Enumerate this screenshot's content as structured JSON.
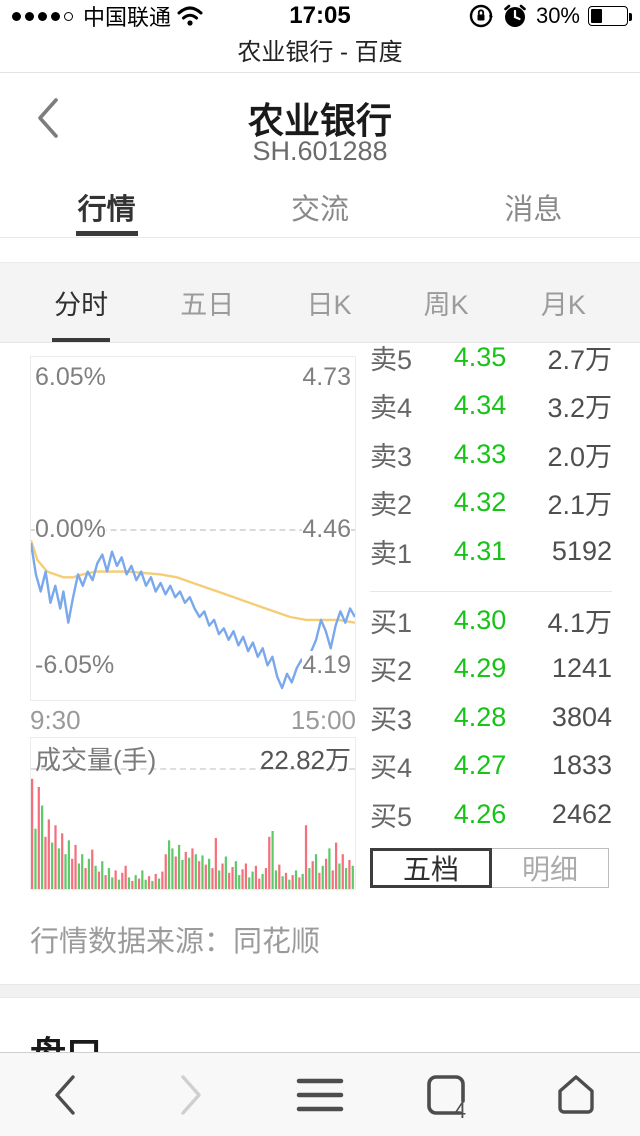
{
  "status_bar": {
    "carrier": "中国联通",
    "time": "17:05",
    "battery_pct_label": "30%",
    "battery_level": 0.3,
    "signal_dots_filled": 4,
    "signal_dots_total": 5
  },
  "browser": {
    "page_title": "农业银行 - 百度"
  },
  "stock_header": {
    "title": "农业银行",
    "code": "SH.601288"
  },
  "tabs": [
    {
      "label": "行情",
      "active": true
    },
    {
      "label": "交流",
      "active": false
    },
    {
      "label": "消息",
      "active": false
    }
  ],
  "subtabs": [
    {
      "label": "分时",
      "active": true
    },
    {
      "label": "五日",
      "active": false
    },
    {
      "label": "日K",
      "active": false
    },
    {
      "label": "周K",
      "active": false
    },
    {
      "label": "月K",
      "active": false
    }
  ],
  "chart_data": [
    {
      "type": "line",
      "title": "minute-price-chart",
      "x_axis": {
        "labels": [
          "9:30",
          "15:00"
        ]
      },
      "y_left_labels": [
        "6.05%",
        "0.00%",
        "-6.05%"
      ],
      "y_right_labels": [
        "4.73",
        "4.46",
        "4.19"
      ],
      "ylim_pct": [
        -6.05,
        6.05
      ],
      "zero_price": "4.46",
      "grid": "dashed-zero-line",
      "series": [
        {
          "name": "price",
          "color": "#7aa8ec",
          "points": [
            [
              0,
              -0.5
            ],
            [
              0.015,
              -1.6
            ],
            [
              0.03,
              -2.2
            ],
            [
              0.045,
              -1.5
            ],
            [
              0.06,
              -2.6
            ],
            [
              0.075,
              -2.0
            ],
            [
              0.09,
              -2.8
            ],
            [
              0.1,
              -2.2
            ],
            [
              0.115,
              -3.3
            ],
            [
              0.13,
              -2.4
            ],
            [
              0.145,
              -1.6
            ],
            [
              0.16,
              -2.0
            ],
            [
              0.175,
              -1.5
            ],
            [
              0.19,
              -1.8
            ],
            [
              0.205,
              -1.2
            ],
            [
              0.22,
              -0.9
            ],
            [
              0.235,
              -1.5
            ],
            [
              0.25,
              -0.8
            ],
            [
              0.265,
              -1.3
            ],
            [
              0.28,
              -1.0
            ],
            [
              0.295,
              -1.6
            ],
            [
              0.31,
              -1.3
            ],
            [
              0.325,
              -1.8
            ],
            [
              0.34,
              -1.5
            ],
            [
              0.355,
              -2.0
            ],
            [
              0.37,
              -1.7
            ],
            [
              0.385,
              -2.2
            ],
            [
              0.4,
              -1.9
            ],
            [
              0.415,
              -2.3
            ],
            [
              0.43,
              -2.0
            ],
            [
              0.445,
              -2.4
            ],
            [
              0.46,
              -2.2
            ],
            [
              0.475,
              -2.6
            ],
            [
              0.49,
              -2.4
            ],
            [
              0.505,
              -2.8
            ],
            [
              0.52,
              -3.1
            ],
            [
              0.535,
              -2.9
            ],
            [
              0.55,
              -3.4
            ],
            [
              0.565,
              -3.2
            ],
            [
              0.58,
              -3.7
            ],
            [
              0.595,
              -3.5
            ],
            [
              0.61,
              -3.9
            ],
            [
              0.625,
              -3.6
            ],
            [
              0.64,
              -4.1
            ],
            [
              0.655,
              -3.8
            ],
            [
              0.67,
              -4.3
            ],
            [
              0.685,
              -4.0
            ],
            [
              0.7,
              -4.5
            ],
            [
              0.715,
              -4.2
            ],
            [
              0.73,
              -4.8
            ],
            [
              0.745,
              -4.5
            ],
            [
              0.76,
              -5.2
            ],
            [
              0.775,
              -5.6
            ],
            [
              0.79,
              -5.1
            ],
            [
              0.805,
              -5.4
            ],
            [
              0.82,
              -4.9
            ],
            [
              0.835,
              -4.6
            ],
            [
              0.85,
              -4.9
            ],
            [
              0.865,
              -4.3
            ],
            [
              0.88,
              -3.9
            ],
            [
              0.895,
              -3.2
            ],
            [
              0.91,
              -3.6
            ],
            [
              0.925,
              -4.2
            ],
            [
              0.94,
              -3.4
            ],
            [
              0.955,
              -2.9
            ],
            [
              0.97,
              -3.3
            ],
            [
              0.985,
              -2.8
            ],
            [
              1,
              -3.1
            ]
          ]
        },
        {
          "name": "average",
          "color": "#f5cd76",
          "points": [
            [
              0,
              -0.4
            ],
            [
              0.02,
              -1.1
            ],
            [
              0.05,
              -1.5
            ],
            [
              0.1,
              -1.7
            ],
            [
              0.13,
              -1.7
            ],
            [
              0.16,
              -1.6
            ],
            [
              0.2,
              -1.5
            ],
            [
              0.3,
              -1.5
            ],
            [
              0.4,
              -1.6
            ],
            [
              0.45,
              -1.7
            ],
            [
              0.5,
              -1.9
            ],
            [
              0.55,
              -2.1
            ],
            [
              0.6,
              -2.3
            ],
            [
              0.65,
              -2.5
            ],
            [
              0.7,
              -2.7
            ],
            [
              0.75,
              -2.9
            ],
            [
              0.8,
              -3.1
            ],
            [
              0.85,
              -3.2
            ],
            [
              0.9,
              -3.2
            ],
            [
              0.95,
              -3.2
            ],
            [
              1,
              -3.3
            ]
          ]
        }
      ]
    },
    {
      "type": "bar",
      "title_label": "成交量(手)",
      "max_label": "22.82万",
      "colors": {
        "up": "#f5707c",
        "down": "#5fc96a"
      },
      "bars": [
        [
          95,
          "r"
        ],
        [
          52,
          "g"
        ],
        [
          88,
          "r"
        ],
        [
          72,
          "g"
        ],
        [
          45,
          "r"
        ],
        [
          60,
          "r"
        ],
        [
          40,
          "g"
        ],
        [
          55,
          "r"
        ],
        [
          35,
          "g"
        ],
        [
          48,
          "r"
        ],
        [
          30,
          "g"
        ],
        [
          42,
          "g"
        ],
        [
          26,
          "r"
        ],
        [
          38,
          "r"
        ],
        [
          22,
          "g"
        ],
        [
          30,
          "g"
        ],
        [
          18,
          "r"
        ],
        [
          26,
          "g"
        ],
        [
          34,
          "r"
        ],
        [
          20,
          "g"
        ],
        [
          15,
          "r"
        ],
        [
          24,
          "g"
        ],
        [
          12,
          "r"
        ],
        [
          18,
          "g"
        ],
        [
          10,
          "g"
        ],
        [
          16,
          "r"
        ],
        [
          8,
          "g"
        ],
        [
          14,
          "r"
        ],
        [
          20,
          "r"
        ],
        [
          10,
          "g"
        ],
        [
          7,
          "r"
        ],
        [
          12,
          "g"
        ],
        [
          9,
          "r"
        ],
        [
          16,
          "g"
        ],
        [
          8,
          "g"
        ],
        [
          11,
          "r"
        ],
        [
          7,
          "g"
        ],
        [
          13,
          "r"
        ],
        [
          9,
          "g"
        ],
        [
          15,
          "r"
        ],
        [
          30,
          "r"
        ],
        [
          42,
          "g"
        ],
        [
          35,
          "g"
        ],
        [
          28,
          "r"
        ],
        [
          38,
          "g"
        ],
        [
          25,
          "g"
        ],
        [
          32,
          "r"
        ],
        [
          27,
          "g"
        ],
        [
          35,
          "r"
        ],
        [
          30,
          "g"
        ],
        [
          24,
          "r"
        ],
        [
          29,
          "g"
        ],
        [
          21,
          "r"
        ],
        [
          26,
          "g"
        ],
        [
          18,
          "r"
        ],
        [
          44,
          "r"
        ],
        [
          16,
          "g"
        ],
        [
          22,
          "r"
        ],
        [
          28,
          "g"
        ],
        [
          14,
          "r"
        ],
        [
          19,
          "r"
        ],
        [
          24,
          "g"
        ],
        [
          12,
          "g"
        ],
        [
          17,
          "r"
        ],
        [
          22,
          "r"
        ],
        [
          10,
          "g"
        ],
        [
          15,
          "g"
        ],
        [
          20,
          "r"
        ],
        [
          9,
          "r"
        ],
        [
          13,
          "g"
        ],
        [
          18,
          "r"
        ],
        [
          45,
          "r"
        ],
        [
          50,
          "g"
        ],
        [
          16,
          "g"
        ],
        [
          21,
          "r"
        ],
        [
          11,
          "g"
        ],
        [
          14,
          "r"
        ],
        [
          8,
          "g"
        ],
        [
          12,
          "r"
        ],
        [
          16,
          "g"
        ],
        [
          10,
          "r"
        ],
        [
          13,
          "g"
        ],
        [
          55,
          "r"
        ],
        [
          18,
          "g"
        ],
        [
          24,
          "r"
        ],
        [
          30,
          "g"
        ],
        [
          14,
          "r"
        ],
        [
          20,
          "g"
        ],
        [
          26,
          "r"
        ],
        [
          35,
          "g"
        ],
        [
          16,
          "r"
        ],
        [
          40,
          "r"
        ],
        [
          22,
          "g"
        ],
        [
          30,
          "r"
        ],
        [
          18,
          "g"
        ],
        [
          25,
          "r"
        ],
        [
          20,
          "g"
        ]
      ]
    }
  ],
  "order_book": {
    "price_color": "#17c317",
    "sell_rows": [
      {
        "label": "卖5",
        "price": "4.35",
        "volume": "2.7万"
      },
      {
        "label": "卖4",
        "price": "4.34",
        "volume": "3.2万"
      },
      {
        "label": "卖3",
        "price": "4.33",
        "volume": "2.0万"
      },
      {
        "label": "卖2",
        "price": "4.32",
        "volume": "2.1万"
      },
      {
        "label": "卖1",
        "price": "4.31",
        "volume": "5192"
      }
    ],
    "buy_rows": [
      {
        "label": "买1",
        "price": "4.30",
        "volume": "4.1万"
      },
      {
        "label": "买2",
        "price": "4.29",
        "volume": "1241"
      },
      {
        "label": "买3",
        "price": "4.28",
        "volume": "3804"
      },
      {
        "label": "买4",
        "price": "4.27",
        "volume": "1833"
      },
      {
        "label": "买5",
        "price": "4.26",
        "volume": "2462"
      }
    ],
    "buttons": [
      {
        "label": "五档",
        "active": true
      },
      {
        "label": "明细",
        "active": false
      }
    ]
  },
  "footer": {
    "source_note": "行情数据来源：同花顺",
    "next_section_title": "盘口"
  },
  "nav_bar": {
    "tab_count": "4",
    "icons": [
      "back-icon",
      "forward-icon",
      "menu-icon",
      "tabs-icon",
      "home-icon"
    ]
  }
}
